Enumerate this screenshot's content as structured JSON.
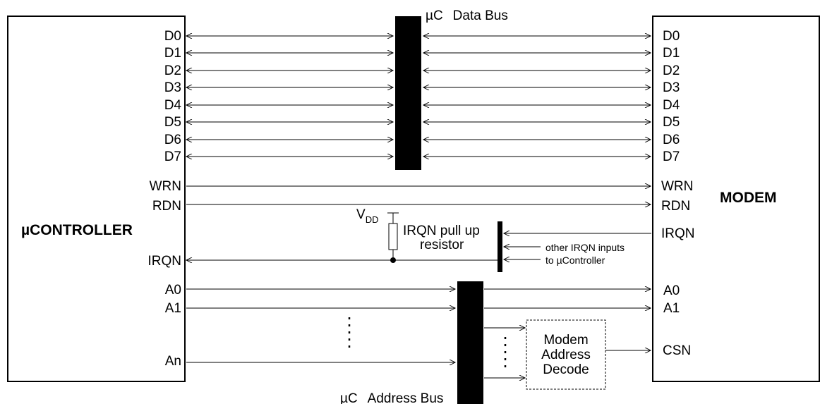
{
  "controller": {
    "title": "µCONTROLLER",
    "data_pins": [
      "D0",
      "D1",
      "D2",
      "D3",
      "D4",
      "D5",
      "D6",
      "D7"
    ],
    "wrn": "WRN",
    "rdn": "RDN",
    "irqn": "IRQN",
    "a0": "A0",
    "a1": "A1",
    "an": "An"
  },
  "modem": {
    "title": "MODEM",
    "data_pins": [
      "D0",
      "D1",
      "D2",
      "D3",
      "D4",
      "D5",
      "D6",
      "D7"
    ],
    "wrn": "WRN",
    "rdn": "RDN",
    "irqn": "IRQN",
    "a0": "A0",
    "a1": "A1",
    "csn": "CSN"
  },
  "data_bus": {
    "label_mu": "µC",
    "label_rest": "Data   Bus"
  },
  "address_bus": {
    "label_mu": "µC",
    "label_rest": "Address   Bus"
  },
  "pullup": {
    "vdd_main": "V",
    "vdd_sub": "DD",
    "line1": "IRQN pull up",
    "line2": "resistor",
    "other_line1": "other IRQN inputs",
    "other_line2": "to µController"
  },
  "decode": {
    "line1": "Modem",
    "line2": "Address",
    "line3": "Decode"
  }
}
